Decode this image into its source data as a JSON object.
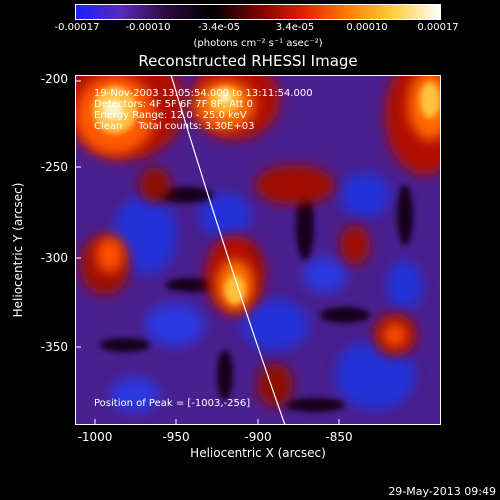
{
  "colorbar": {
    "ticks": [
      "-0.00017",
      "-0.00010",
      "-3.4e-05",
      "3.4e-05",
      "0.00010",
      "0.00017"
    ],
    "units": "(photons cm⁻² s⁻¹ asec⁻²)",
    "colors": [
      "#1a20ff",
      "#5a2ab8",
      "#2a0a40",
      "#000000",
      "#7a0000",
      "#e02000",
      "#ff8000",
      "#ffd040",
      "#ffffff"
    ]
  },
  "plot": {
    "title": "Reconstructed RHESSI Image",
    "xlabel": "Heliocentric X (arcsec)",
    "ylabel": "Heliocentric Y (arcsec)",
    "xticks": [
      "-1000",
      "-950",
      "-900",
      "-850"
    ],
    "yticks": [
      "-200",
      "-250",
      "-300",
      "-350"
    ],
    "annotations": [
      "19-Nov-2003 13:05:54.000 to 13:11:54.000",
      "Detectors: 4F 5F 6F 7F 8F, Att 0",
      "Energy Range: 12.0 - 25.0 keV",
      "Clean     Total counts: 3.30E+03"
    ],
    "peak_text": "Position of Peak = [-1003,-256]"
  },
  "footer": {
    "timestamp": "29-May-2013 09:49"
  }
}
